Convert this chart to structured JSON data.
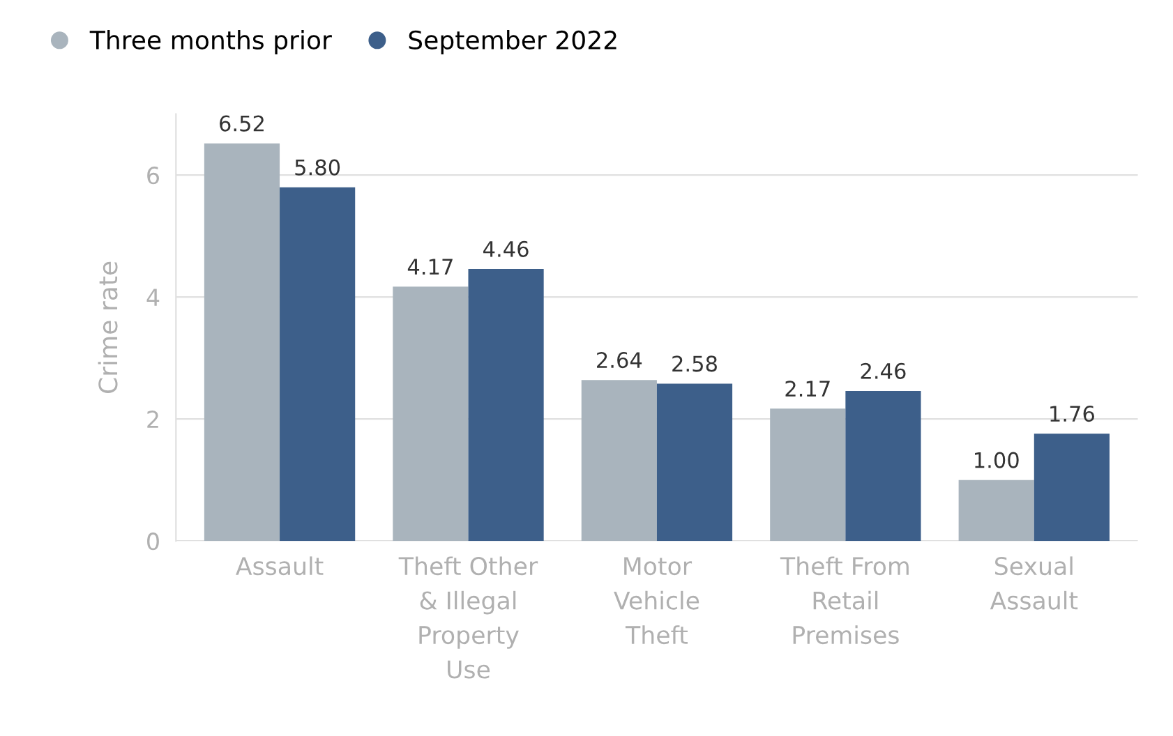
{
  "chart_data": {
    "type": "bar",
    "ylabel": "Crime rate",
    "categories": [
      "Assault",
      "Theft Other\n& Illegal\nProperty\nUse",
      "Motor\nVehicle\nTheft",
      "Theft From\nRetail\nPremises",
      "Sexual\nAssault"
    ],
    "series": [
      {
        "name": "Three months prior",
        "color": "#a9b4bd",
        "values": [
          6.52,
          4.17,
          2.64,
          2.17,
          1.0
        ],
        "value_labels": [
          "6.52",
          "4.17",
          "2.64",
          "2.17",
          "1.00"
        ]
      },
      {
        "name": "September 2022",
        "color": "#3d5f8a",
        "values": [
          5.8,
          4.46,
          2.58,
          2.46,
          1.76
        ],
        "value_labels": [
          "5.80",
          "4.46",
          "2.58",
          "2.46",
          "1.76"
        ]
      }
    ],
    "ylim": [
      0,
      7
    ],
    "yticks": [
      0,
      2,
      4,
      6
    ],
    "grid": "y",
    "legend": "top left"
  }
}
